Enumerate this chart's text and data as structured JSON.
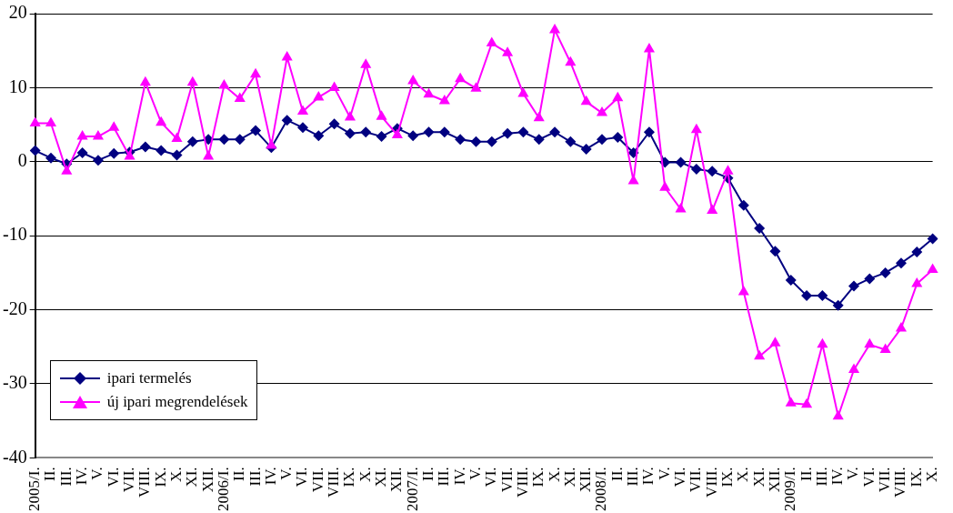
{
  "chart_data": {
    "type": "line",
    "categories": [
      "2005/I.",
      "II.",
      "III.",
      "IV.",
      "V.",
      "VI.",
      "VII.",
      "VIII.",
      "IX.",
      "X.",
      "XI.",
      "XII.",
      "2006/I.",
      "II.",
      "III.",
      "IV.",
      "V.",
      "VI.",
      "VII.",
      "VIII.",
      "IX.",
      "X.",
      "XI.",
      "XII.",
      "2007/I.",
      "II.",
      "III.",
      "IV.",
      "V.",
      "VI.",
      "VII.",
      "VIII.",
      "IX.",
      "X.",
      "XI.",
      "XII.",
      "2008/I.",
      "II.",
      "III.",
      "IV.",
      "V.",
      "VI.",
      "VII.",
      "VIII.",
      "IX.",
      "X.",
      "XI.",
      "XII.",
      "2009/I.",
      "II.",
      "III.",
      "IV.",
      "V.",
      "VI.",
      "VII.",
      "VIII.",
      "IX.",
      "X."
    ],
    "series": [
      {
        "name": "ipari termelés",
        "color": "#000080",
        "marker": "diamond",
        "values": [
          1.5,
          0.5,
          -0.3,
          1.2,
          0.2,
          1.1,
          1.3,
          2.0,
          1.5,
          0.9,
          2.7,
          3.0,
          3.0,
          3.0,
          4.2,
          1.9,
          5.6,
          4.6,
          3.5,
          5.1,
          3.8,
          4.0,
          3.4,
          4.5,
          3.5,
          4.0,
          4.0,
          3.0,
          2.7,
          2.7,
          3.8,
          4.0,
          3.0,
          4.0,
          2.7,
          1.7,
          3.0,
          3.3,
          1.2,
          4.0,
          -0.1,
          -0.1,
          -1.0,
          -1.3,
          -2.2,
          -5.9,
          -9.0,
          -12.1,
          -16.0,
          -18.1,
          -18.1,
          -19.4,
          -16.8,
          -15.8,
          -15.0,
          -13.7,
          -12.2,
          -10.4
        ]
      },
      {
        "name": "új ipari megrendelések",
        "color": "#ff00ff",
        "marker": "triangle",
        "values": [
          5.2,
          5.2,
          -1.3,
          3.4,
          3.4,
          4.6,
          0.7,
          10.7,
          5.3,
          3.1,
          10.7,
          0.7,
          10.3,
          8.5,
          11.8,
          2.2,
          14.1,
          6.8,
          8.7,
          10.0,
          6.0,
          13.1,
          6.1,
          3.6,
          10.9,
          9.1,
          8.2,
          11.2,
          9.9,
          16.0,
          14.7,
          9.2,
          5.9,
          17.8,
          13.4,
          8.1,
          6.6,
          8.6,
          -2.6,
          15.2,
          -3.5,
          -6.4,
          4.3,
          -6.6,
          -1.3,
          -17.6,
          -26.3,
          -24.5,
          -32.6,
          -32.8,
          -24.7,
          -34.4,
          -28.1,
          -24.7,
          -25.4,
          -22.5,
          -16.5,
          -14.6
        ]
      }
    ],
    "ylim": [
      -40,
      20
    ],
    "yticks": [
      -40,
      -30,
      -20,
      -10,
      0,
      10,
      20
    ],
    "grid": "y",
    "legend": "bottom left",
    "line_style": "solid"
  }
}
